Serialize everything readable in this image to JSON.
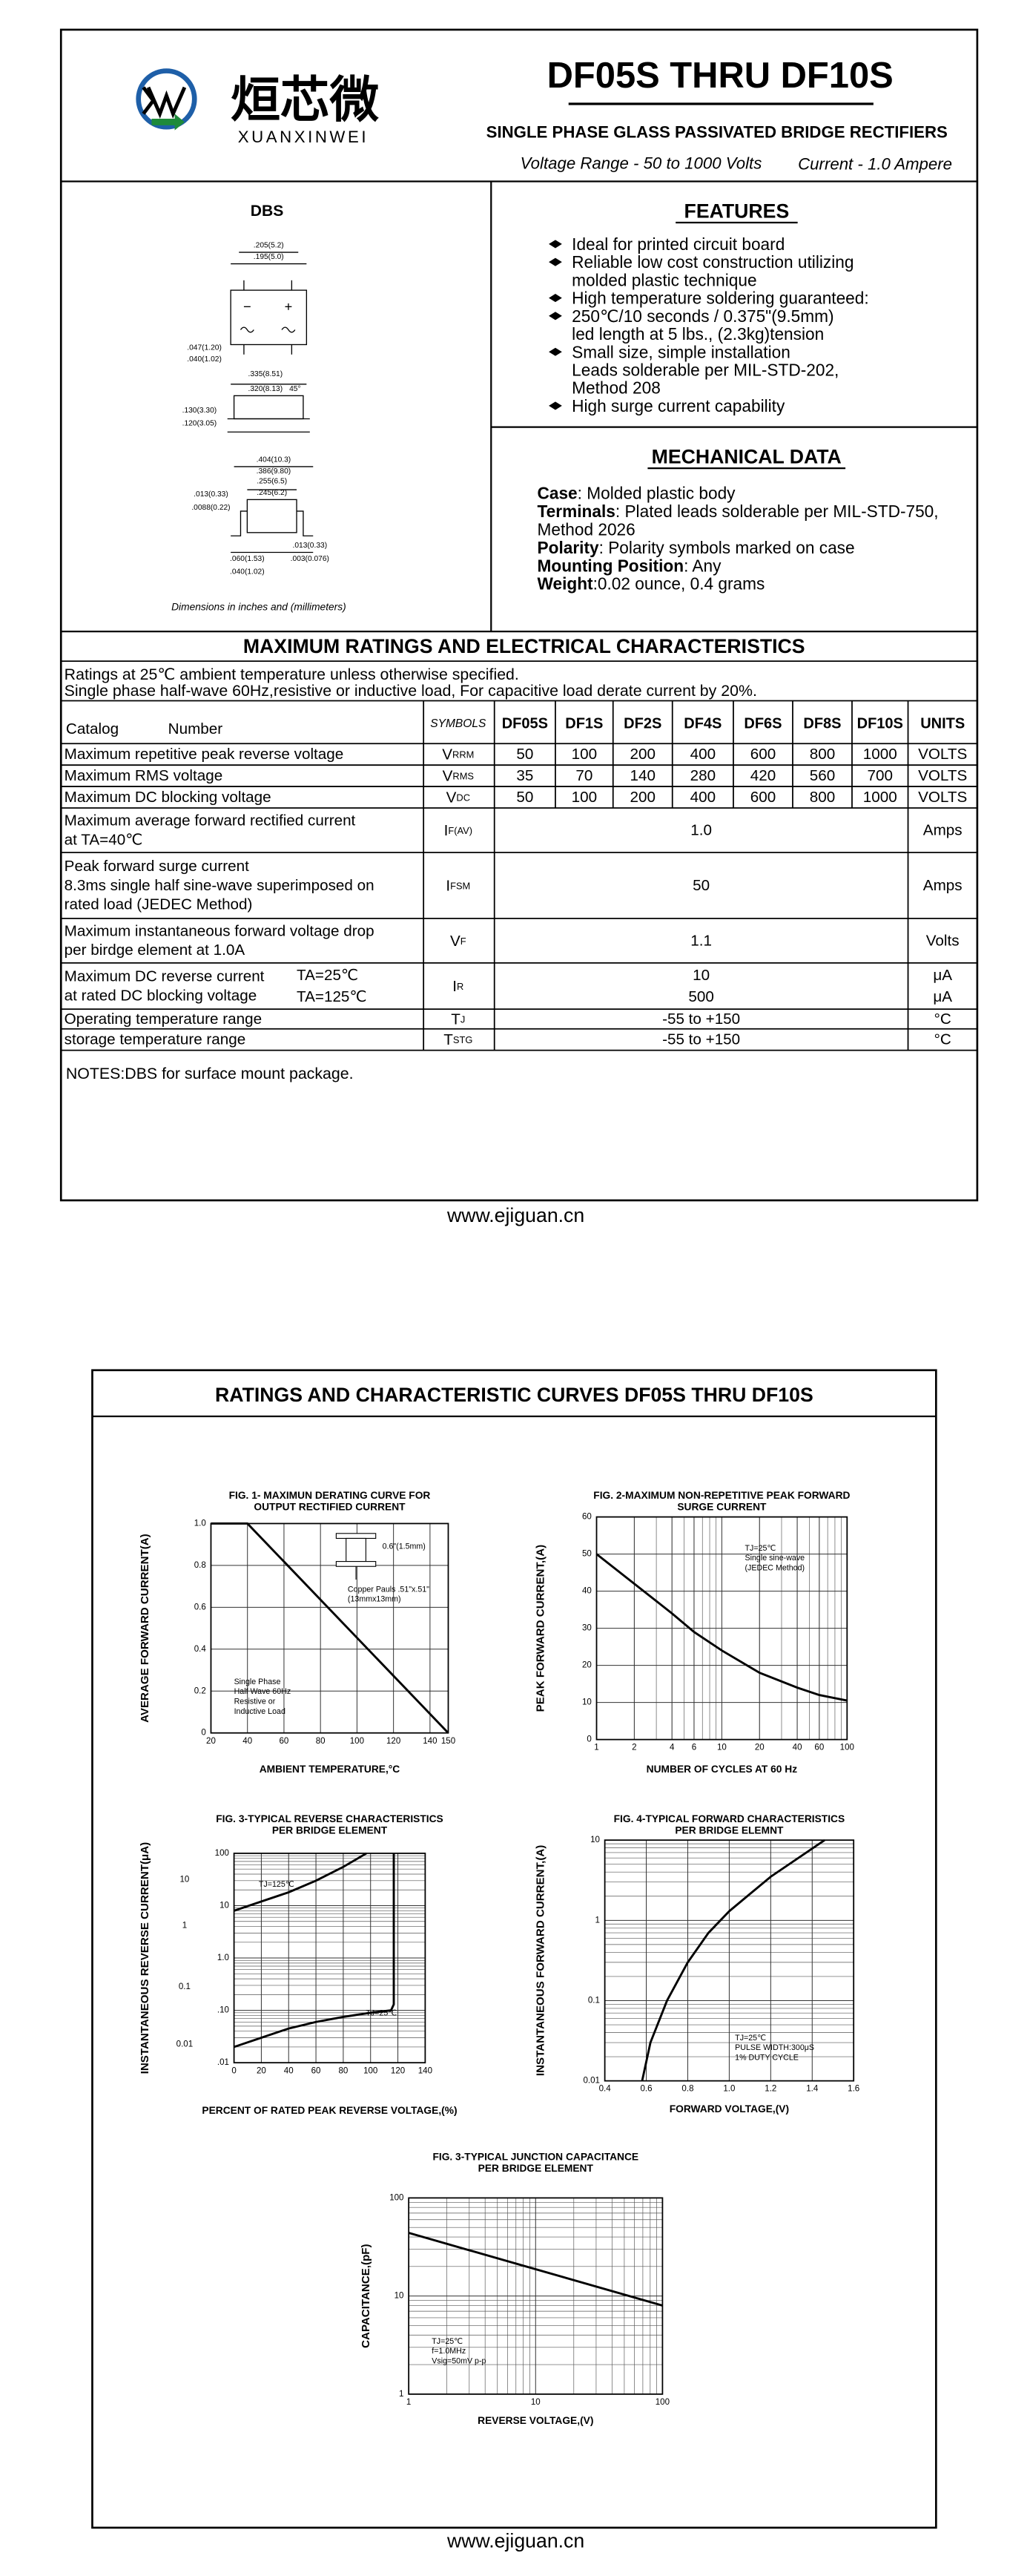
{
  "header": {
    "brand_cn": "烜芯微",
    "brand_en": "XUANXINWEI",
    "title": "DF05S THRU DF10S",
    "subtitle": "SINGLE PHASE GLASS PASSIVATED BRIDGE RECTIFIERS",
    "voltage_range": "Voltage Range - 50 to 1000 Volts",
    "current": "Current - 1.0 Ampere"
  },
  "package": {
    "title": "DBS",
    "dims": [
      ".205(5.2)",
      ".195(5.0)",
      ".047(1.20)",
      ".040(1.02)",
      ".335(8.51)",
      ".320(8.13)",
      "45°",
      ".130(3.30)",
      ".120(3.05)",
      ".404(10.3)",
      ".386(9.80)",
      ".255(6.5)",
      ".245(6.2)",
      ".013(0.33)",
      ".0088(0.22)",
      ".013(0.33)",
      ".003(0.076)",
      ".060(1.53)",
      ".040(1.02)"
    ],
    "note": "Dimensions in inches and (millimeters)"
  },
  "features": {
    "title": "FEATURES",
    "items": [
      [
        "Ideal for printed circuit board"
      ],
      [
        "Reliable low cost construction utilizing",
        "molded plastic technique"
      ],
      [
        "High temperature soldering guaranteed:"
      ],
      [
        "250℃/10 seconds / 0.375\"(9.5mm)",
        "led length at 5 lbs., (2.3kg)tension"
      ],
      [
        "Small size, simple installation",
        "Leads solderable per MIL-STD-202,",
        "Method 208"
      ],
      [
        "High surge current capability"
      ]
    ]
  },
  "mechanical": {
    "title": "MECHANICAL DATA",
    "items": [
      {
        "label": "Case",
        "lines": [
          ": Molded plastic body"
        ]
      },
      {
        "label": "Terminals",
        "lines": [
          ": Plated leads solderable per MIL-STD-750,",
          " Method 2026"
        ]
      },
      {
        "label": "Polarity",
        "lines": [
          ": Polarity symbols marked on case"
        ]
      },
      {
        "label": "Mounting Position",
        "lines": [
          ": Any"
        ]
      },
      {
        "label": "Weight",
        "lines": [
          ":0.02 ounce, 0.4 grams"
        ]
      }
    ]
  },
  "ratings": {
    "title": "MAXIMUM RATINGS AND ELECTRICAL CHARACTERISTICS",
    "notes": [
      "Ratings at 25℃ ambient temperature unless otherwise specified.",
      "Single phase half-wave 60Hz,resistive or inductive load, For capacitive load derate current by 20%."
    ],
    "header": {
      "catalog": "Catalog",
      "number": "Number",
      "symbols": "SYMBOLS",
      "parts": [
        "DF05S",
        "DF1S",
        "DF2S",
        "DF4S",
        "DF6S",
        "DF8S",
        "DF10S"
      ],
      "units": "UNITS"
    },
    "rows": [
      {
        "label": [
          "Maximum repetitive peak reverse voltage"
        ],
        "symbol": {
          "main": "V",
          "sub": "RRM"
        },
        "values": [
          50,
          100,
          200,
          400,
          600,
          800,
          1000
        ],
        "unit": [
          "VOLTS"
        ]
      },
      {
        "label": [
          "Maximum RMS voltage"
        ],
        "symbol": {
          "main": "V",
          "sub": "RMS"
        },
        "values": [
          35,
          70,
          140,
          280,
          420,
          560,
          700
        ],
        "unit": [
          "VOLTS"
        ]
      },
      {
        "label": [
          "Maximum DC blocking voltage"
        ],
        "symbol": {
          "main": "V",
          "sub": "DC"
        },
        "values": [
          50,
          100,
          200,
          400,
          600,
          800,
          1000
        ],
        "unit": [
          "VOLTS"
        ]
      },
      {
        "label": [
          "Maximum average forward rectified current",
          "at TA=40℃"
        ],
        "symbol": {
          "main": "I",
          "sub": "F(AV)"
        },
        "values": [
          "1.0"
        ],
        "unit": [
          "Amps"
        ]
      },
      {
        "label": [
          "Peak forward surge current",
          "8.3ms single half sine-wave superimposed on",
          "rated load (JEDEC Method)"
        ],
        "symbol": {
          "main": "I",
          "sub": "FSM"
        },
        "values": [
          50
        ],
        "unit": [
          "Amps"
        ]
      },
      {
        "label": [
          "Maximum instantaneous forward voltage drop",
          "per birdge element at 1.0A"
        ],
        "symbol": {
          "main": "V",
          "sub": "F"
        },
        "values": [
          "1.1"
        ],
        "unit": [
          "Volts"
        ]
      },
      {
        "label": [
          "Maximum DC reverse current",
          "at rated DC blocking voltage"
        ],
        "conditions": [
          "TA=25℃",
          "TA=125℃"
        ],
        "symbol": {
          "main": "I",
          "sub": "R"
        },
        "values": [
          10,
          500
        ],
        "unit": [
          "μA",
          "μA"
        ]
      },
      {
        "label": [
          "Operating temperature range"
        ],
        "symbol": {
          "main": "T",
          "sub": "J"
        },
        "values": [
          "-55 to +150"
        ],
        "unit": [
          "°C"
        ]
      },
      {
        "label": [
          "storage temperature range"
        ],
        "symbol": {
          "main": "T",
          "sub": "STG"
        },
        "values": [
          "-55 to +150"
        ],
        "unit": [
          "°C"
        ]
      }
    ]
  },
  "notes": "NOTES:DBS for surface mount package.",
  "footer": "www.ejiguan.cn",
  "page2": {
    "title": "RATINGS AND CHARACTERISTIC CURVES DF05S THRU DF10S",
    "footer": "www.ejiguan.cn"
  },
  "figures": [
    {
      "title": [
        "FIG. 1- MAXIMUN DERATING CURVE FOR",
        "OUTPUT RECTIFIED CURRENT"
      ],
      "xlabel": "AMBIENT TEMPERATURE,°C",
      "ylabel": "AVERAGE FORWARD CURRENT(A)",
      "xscale": "linear",
      "yscale": "linear",
      "xlim": [
        20,
        150
      ],
      "ylim": [
        0,
        1
      ],
      "xticks": [
        20,
        40,
        60,
        80,
        100,
        120,
        140,
        150
      ],
      "yticks": [
        0,
        0.2,
        0.4,
        0.6,
        0.8,
        {
          "value": 1,
          "label": "1.0"
        }
      ],
      "series": [
        {
          "x": [
            20,
            40,
            150
          ],
          "y": [
            1,
            1,
            0
          ]
        }
      ],
      "annotations": [
        "0.6\"(1.5mm)",
        "Copper Pauls .51\"x.51\"",
        "(13mmx13mm)",
        "Single Phase",
        "Half Wave 60Hz",
        "Resistive or",
        "Inductive Load"
      ]
    },
    {
      "title": [
        "FIG. 2-MAXIMUM NON-REPETITIVE PEAK FORWARD",
        "SURGE CURRENT"
      ],
      "xlabel": "NUMBER OF CYCLES AT 60 Hz",
      "ylabel": "PEAK  FORWARD CURRENT,(A)",
      "xscale": "log",
      "yscale": "linear",
      "xlim": [
        1,
        100
      ],
      "ylim": [
        0,
        60
      ],
      "xticks": [
        1,
        2,
        4,
        6,
        10,
        20,
        40,
        60,
        100
      ],
      "yticks": [
        0,
        10,
        20,
        30,
        40,
        50,
        60
      ],
      "series": [
        {
          "x": [
            1,
            2,
            4,
            6,
            10,
            20,
            40,
            60,
            100
          ],
          "y": [
            50,
            42,
            34,
            29,
            24,
            18,
            14,
            12,
            10.5
          ]
        }
      ],
      "annotations": [
        "TJ=25℃",
        "Single sine-wave",
        "(JEDEC Method)"
      ]
    },
    {
      "title": [
        "FIG. 3-TYPICAL REVERSE CHARACTERISTICS",
        "PER BRIDGE ELEMENT"
      ],
      "xlabel": "PERCENT OF RATED PEAK REVERSE VOLTAGE,(%)",
      "ylabel": "INSTANTANEOUS REVERSE CURRENT(μA)",
      "xscale": "linear",
      "yscale": "log",
      "xlim": [
        0,
        140
      ],
      "ylim": [
        0.01,
        100
      ],
      "xticks": [
        0,
        20,
        40,
        60,
        80,
        100,
        120,
        140
      ],
      "yticks": [
        {
          "value": 0.01,
          "label": ".01"
        },
        {
          "value": 0.1,
          "label": ".10"
        },
        {
          "value": 1,
          "label": "1.0"
        },
        10,
        100
      ],
      "series": [
        {
          "x": [
            0,
            20,
            40,
            60,
            80,
            97
          ],
          "y": [
            8,
            12,
            18,
            30,
            55,
            100
          ]
        },
        {
          "x": [
            0,
            20,
            40,
            60,
            80,
            100,
            115,
            117,
            117
          ],
          "y": [
            0.02,
            0.03,
            0.045,
            0.06,
            0.075,
            0.09,
            0.1,
            0.13,
            100
          ]
        }
      ],
      "annotations": [
        "TJ=125℃",
        "TJ=25℃"
      ],
      "side_labels": [
        "10",
        "1",
        "0.1",
        "0.01"
      ]
    },
    {
      "title": [
        "FIG. 4-TYPICAL FORWARD CHARACTERISTICS",
        "PER BRIDGE ELEMNT"
      ],
      "xlabel": "FORWARD VOLTAGE,(V)",
      "ylabel": "INSTANTANEOUS FORWARD CURRENT,(A)",
      "xscale": "linear",
      "yscale": "log",
      "xlim": [
        0.4,
        1.6
      ],
      "ylim": [
        0.01,
        10
      ],
      "xticks": [
        0.4,
        0.6,
        0.8,
        {
          "value": 1,
          "label": "1.0"
        },
        1.2,
        1.4,
        1.6
      ],
      "yticks": [
        0.01,
        0.1,
        1,
        10
      ],
      "series": [
        {
          "x": [
            0.58,
            0.62,
            0.7,
            0.8,
            0.9,
            1.0,
            1.2,
            1.46
          ],
          "y": [
            0.01,
            0.03,
            0.1,
            0.3,
            0.7,
            1.3,
            3.5,
            10
          ]
        }
      ],
      "annotations": [
        "TJ=25℃",
        "PULSE WIDTH:300μS",
        "1% DUTY CYCLE"
      ]
    },
    {
      "title": [
        "FIG. 3-TYPICAL JUNCTION CAPACITANCE",
        "PER BRIDGE ELEMENT"
      ],
      "xlabel": "REVERSE VOLTAGE,(V)",
      "ylabel": "CAPACITANCE,(pF)",
      "xscale": "log",
      "yscale": "log",
      "xlim": [
        1,
        100
      ],
      "ylim": [
        1,
        100
      ],
      "xticks": [
        1,
        10,
        100
      ],
      "yticks": [
        1,
        10,
        100
      ],
      "series": [
        {
          "x": [
            1,
            100
          ],
          "y": [
            44,
            8
          ]
        }
      ],
      "annotations": [
        "TJ=25℃",
        "f=1.0MHz",
        "Vsig=50mV p-p"
      ]
    }
  ]
}
